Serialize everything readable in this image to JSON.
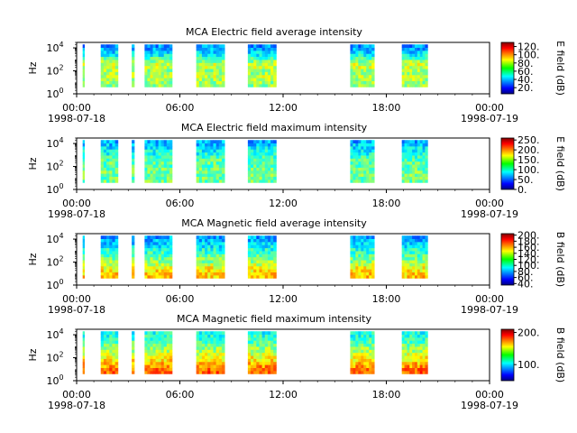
{
  "chart_data": [
    {
      "type": "heatmap",
      "title": "MCA  Electric field average intensity",
      "ylabel": "Hz",
      "y_scale": "log",
      "ylim": [
        1,
        30000
      ],
      "y_ticks": [
        {
          "base": "10",
          "exp": "0"
        },
        {
          "base": "10",
          "exp": "2"
        },
        {
          "base": "10",
          "exp": "4"
        }
      ],
      "x_ticks": [
        "00:00",
        "06:00",
        "12:00",
        "18:00",
        "00:00"
      ],
      "x_dates": [
        "1998-07-18",
        "1998-07-19"
      ],
      "colorbar": {
        "label": "E field (dB)",
        "range": [
          5,
          130
        ],
        "ticks": [
          "20.",
          "40.",
          "60.",
          "80.",
          "100.",
          "120."
        ]
      },
      "blocks_hours": [
        [
          0.35,
          0.45
        ],
        [
          1.4,
          2.4
        ],
        [
          3.2,
          3.35
        ],
        [
          3.95,
          5.55
        ],
        [
          6.95,
          8.6
        ],
        [
          9.95,
          11.6
        ],
        [
          15.9,
          17.3
        ],
        [
          18.9,
          20.4
        ]
      ],
      "spectrum_db": [
        [
          8,
          70
        ],
        [
          35,
          75
        ],
        [
          100,
          70
        ],
        [
          300,
          80
        ],
        [
          1000,
          65
        ],
        [
          3000,
          50
        ],
        [
          10000,
          40
        ],
        [
          30000,
          35
        ]
      ]
    },
    {
      "type": "heatmap",
      "title": "MCA  Electric field maximum intensity",
      "ylabel": "Hz",
      "y_scale": "log",
      "ylim": [
        1,
        30000
      ],
      "y_ticks": [
        {
          "base": "10",
          "exp": "0"
        },
        {
          "base": "10",
          "exp": "2"
        },
        {
          "base": "10",
          "exp": "4"
        }
      ],
      "x_ticks": [
        "00:00",
        "06:00",
        "12:00",
        "18:00",
        "00:00"
      ],
      "x_dates": [
        "1998-07-18",
        "1998-07-19"
      ],
      "colorbar": {
        "label": "E field (dB)",
        "range": [
          0,
          260
        ],
        "ticks": [
          "0.",
          "50.",
          "100.",
          "150.",
          "200.",
          "250."
        ]
      },
      "blocks_hours": [
        [
          0.35,
          0.45
        ],
        [
          1.4,
          2.4
        ],
        [
          3.2,
          3.35
        ],
        [
          3.95,
          5.55
        ],
        [
          6.95,
          8.6
        ],
        [
          9.95,
          11.6
        ],
        [
          15.9,
          17.3
        ],
        [
          18.9,
          20.4
        ]
      ],
      "spectrum_db": [
        [
          8,
          125
        ],
        [
          35,
          130
        ],
        [
          100,
          120
        ],
        [
          300,
          125
        ],
        [
          1000,
          105
        ],
        [
          3000,
          95
        ],
        [
          10000,
          80
        ],
        [
          30000,
          70
        ]
      ]
    },
    {
      "type": "heatmap",
      "title": "MCA  Magnetic field average intensity",
      "ylabel": "Hz",
      "y_scale": "log",
      "ylim": [
        1,
        30000
      ],
      "y_ticks": [
        {
          "base": "10",
          "exp": "0"
        },
        {
          "base": "10",
          "exp": "2"
        },
        {
          "base": "10",
          "exp": "4"
        }
      ],
      "x_ticks": [
        "00:00",
        "06:00",
        "12:00",
        "18:00",
        "00:00"
      ],
      "x_dates": [
        "1998-07-18",
        "1998-07-19"
      ],
      "colorbar": {
        "label": "B field (dB)",
        "range": [
          35,
          205
        ],
        "ticks": [
          "40.",
          "60.",
          "80.",
          "100.",
          "120.",
          "140.",
          "160.",
          "180.",
          "200."
        ]
      },
      "blocks_hours": [
        [
          0.35,
          0.45
        ],
        [
          1.4,
          2.4
        ],
        [
          3.2,
          3.35
        ],
        [
          3.95,
          5.55
        ],
        [
          6.95,
          8.6
        ],
        [
          9.95,
          11.6
        ],
        [
          15.9,
          17.3
        ],
        [
          18.9,
          20.4
        ]
      ],
      "spectrum_db": [
        [
          8,
          150
        ],
        [
          35,
          140
        ],
        [
          100,
          125
        ],
        [
          300,
          115
        ],
        [
          1000,
          105
        ],
        [
          3000,
          95
        ],
        [
          10000,
          85
        ],
        [
          30000,
          80
        ]
      ]
    },
    {
      "type": "heatmap",
      "title": "MCA  Magnetic field maximum intensity",
      "ylabel": "Hz",
      "y_scale": "log",
      "ylim": [
        1,
        30000
      ],
      "y_ticks": [
        {
          "base": "10",
          "exp": "0"
        },
        {
          "base": "10",
          "exp": "2"
        },
        {
          "base": "10",
          "exp": "4"
        }
      ],
      "x_ticks": [
        "00:00",
        "06:00",
        "12:00",
        "18:00",
        "00:00"
      ],
      "x_dates": [
        "1998-07-18",
        "1998-07-19"
      ],
      "colorbar": {
        "label": "B field (dB)",
        "range": [
          50,
          210
        ],
        "ticks": [
          "100.",
          "200."
        ]
      },
      "blocks_hours": [
        [
          0.35,
          0.45
        ],
        [
          1.4,
          2.4
        ],
        [
          3.2,
          3.35
        ],
        [
          3.95,
          5.55
        ],
        [
          6.95,
          8.6
        ],
        [
          9.95,
          11.6
        ],
        [
          15.9,
          17.3
        ],
        [
          18.9,
          20.4
        ]
      ],
      "spectrum_db": [
        [
          8,
          175
        ],
        [
          35,
          160
        ],
        [
          100,
          150
        ],
        [
          300,
          140
        ],
        [
          1000,
          130
        ],
        [
          3000,
          120
        ],
        [
          10000,
          115
        ],
        [
          30000,
          110
        ]
      ]
    }
  ]
}
